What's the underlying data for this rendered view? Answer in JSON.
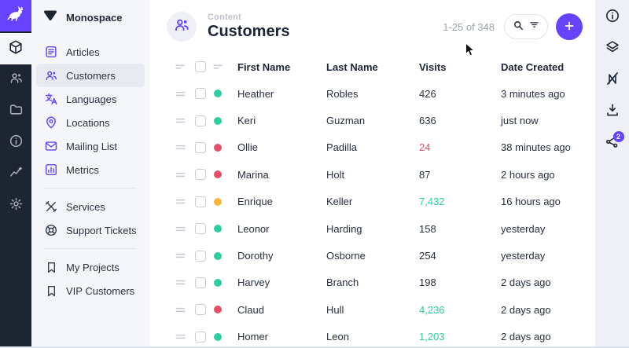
{
  "colors": {
    "accent": "#6644ff",
    "green": "#2ecda2",
    "red": "#e35169",
    "orange": "#f8b63c",
    "rail_bg": "#1e2532"
  },
  "module_bar": {
    "logo_icon": "rabbit-icon",
    "items": [
      {
        "name": "content",
        "icon": "box",
        "active": true
      },
      {
        "name": "user-directory",
        "icon": "users",
        "active": false
      },
      {
        "name": "file-library",
        "icon": "folder",
        "active": false
      },
      {
        "name": "documentation",
        "icon": "info",
        "active": false
      },
      {
        "name": "insights",
        "icon": "insights",
        "active": false
      },
      {
        "name": "settings",
        "icon": "gear",
        "active": false
      }
    ]
  },
  "sidebar": {
    "project": "Monospace",
    "project_icon": "triangle-logo-icon",
    "items": [
      {
        "label": "Articles",
        "icon": "article",
        "tint": "purple",
        "active": false
      },
      {
        "label": "Customers",
        "icon": "users",
        "tint": "purple",
        "active": true
      },
      {
        "label": "Languages",
        "icon": "translate",
        "tint": "purple",
        "active": false
      },
      {
        "label": "Locations",
        "icon": "pin",
        "tint": "purple",
        "active": false
      },
      {
        "label": "Mailing List",
        "icon": "mail",
        "tint": "purple",
        "active": false
      },
      {
        "label": "Metrics",
        "icon": "metrics",
        "tint": "purple",
        "active": false
      },
      {
        "divider": true
      },
      {
        "label": "Services",
        "icon": "tools",
        "tint": "dark",
        "active": false
      },
      {
        "label": "Support Tickets",
        "icon": "lifebuoy",
        "tint": "dark",
        "active": false
      },
      {
        "divider": true
      },
      {
        "label": "My Projects",
        "icon": "bookmark",
        "tint": "dark",
        "active": false
      },
      {
        "label": "VIP Customers",
        "icon": "bookmark",
        "tint": "dark",
        "active": false
      }
    ]
  },
  "header": {
    "breadcrumb": "Content",
    "title": "Customers",
    "title_icon": "users-icon",
    "count": "1-25 of 348",
    "search_icon": "search-icon",
    "filter_icon": "filter-icon",
    "add_icon": "plus-icon"
  },
  "table": {
    "columns": [
      "First Name",
      "Last Name",
      "Visits",
      "Date Created"
    ],
    "rows": [
      {
        "status": "green",
        "first": "Heather",
        "last": "Robles",
        "visits": "426",
        "visits_color": "default",
        "created": "3 minutes ago"
      },
      {
        "status": "green",
        "first": "Keri",
        "last": "Guzman",
        "visits": "636",
        "visits_color": "default",
        "created": "just now"
      },
      {
        "status": "red",
        "first": "Ollie",
        "last": "Padilla",
        "visits": "24",
        "visits_color": "red",
        "created": "38 minutes ago"
      },
      {
        "status": "red",
        "first": "Marina",
        "last": "Holt",
        "visits": "87",
        "visits_color": "default",
        "created": "2 hours ago"
      },
      {
        "status": "orange",
        "first": "Enrique",
        "last": "Keller",
        "visits": "7,432",
        "visits_color": "green",
        "created": "16 hours ago"
      },
      {
        "status": "green",
        "first": "Leonor",
        "last": "Harding",
        "visits": "158",
        "visits_color": "default",
        "created": "yesterday"
      },
      {
        "status": "green",
        "first": "Dorothy",
        "last": "Osborne",
        "visits": "254",
        "visits_color": "default",
        "created": "yesterday"
      },
      {
        "status": "green",
        "first": "Harvey",
        "last": "Branch",
        "visits": "198",
        "visits_color": "default",
        "created": "2 days ago"
      },
      {
        "status": "red",
        "first": "Claud",
        "last": "Hull",
        "visits": "4,236",
        "visits_color": "green",
        "created": "2 days ago"
      },
      {
        "status": "green",
        "first": "Homer",
        "last": "Leon",
        "visits": "1,203",
        "visits_color": "green",
        "created": "2 days ago"
      }
    ]
  },
  "right_toolbar": {
    "badge": "2",
    "items": [
      {
        "name": "info",
        "icon": "info-circle"
      },
      {
        "name": "layout-options",
        "icon": "layers"
      },
      {
        "name": "revisions-off",
        "icon": "n-slash"
      },
      {
        "name": "import-export",
        "icon": "import"
      },
      {
        "name": "share",
        "icon": "share",
        "badge": "2"
      }
    ]
  }
}
